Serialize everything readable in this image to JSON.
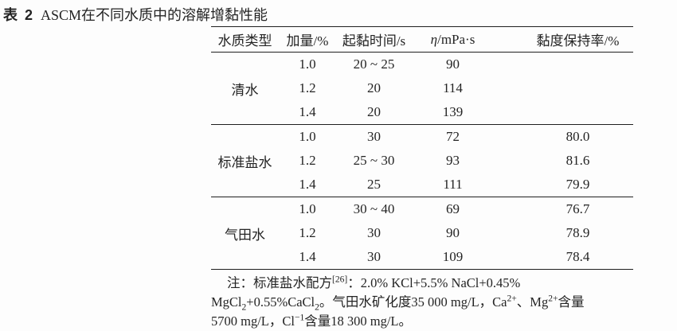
{
  "page": {
    "background": "#fdfdfd",
    "text_color": "#242424",
    "rule_color": "#1f1f1f"
  },
  "caption": {
    "label": "表 2",
    "title": "ASCM在不同水质中的溶解增黏性能"
  },
  "table": {
    "columns": [
      "水质类型",
      "加量/%",
      "起黏时间/s",
      "η/mPa·s",
      "黏度保持率/%"
    ],
    "groups": [
      {
        "water_type": "清水",
        "rows": [
          {
            "dosage": "1.0",
            "onset_time_s": "20 ~ 25",
            "viscosity_mpas": "90",
            "retention_pct": ""
          },
          {
            "dosage": "1.2",
            "onset_time_s": "20",
            "viscosity_mpas": "114",
            "retention_pct": ""
          },
          {
            "dosage": "1.4",
            "onset_time_s": "20",
            "viscosity_mpas": "139",
            "retention_pct": ""
          }
        ]
      },
      {
        "water_type": "标准盐水",
        "rows": [
          {
            "dosage": "1.0",
            "onset_time_s": "30",
            "viscosity_mpas": "72",
            "retention_pct": "80.0"
          },
          {
            "dosage": "1.2",
            "onset_time_s": "25 ~ 30",
            "viscosity_mpas": "93",
            "retention_pct": "81.6"
          },
          {
            "dosage": "1.4",
            "onset_time_s": "25",
            "viscosity_mpas": "111",
            "retention_pct": "79.9"
          }
        ]
      },
      {
        "water_type": "气田水",
        "rows": [
          {
            "dosage": "1.0",
            "onset_time_s": "30 ~ 40",
            "viscosity_mpas": "69",
            "retention_pct": "76.7"
          },
          {
            "dosage": "1.2",
            "onset_time_s": "30",
            "viscosity_mpas": "90",
            "retention_pct": "78.9"
          },
          {
            "dosage": "1.4",
            "onset_time_s": "30",
            "viscosity_mpas": "109",
            "retention_pct": "78.4"
          }
        ]
      }
    ]
  },
  "note": {
    "lines": [
      [
        {
          "t": "注：标准盐水配方"
        },
        {
          "t": "[26]",
          "v": "sup"
        },
        {
          "t": "：2.0% KCl+5.5% NaCl+0.45%"
        }
      ],
      [
        {
          "t": "MgCl"
        },
        {
          "t": "2",
          "v": "sub"
        },
        {
          "t": "+0.55%CaCl"
        },
        {
          "t": "2",
          "v": "sub"
        },
        {
          "t": "。气田水矿化度35 000 mg/L，Ca"
        },
        {
          "t": "2+",
          "v": "sup"
        },
        {
          "t": "、Mg"
        },
        {
          "t": "2+",
          "v": "sup"
        },
        {
          "t": "含量"
        }
      ],
      [
        {
          "t": "5700 mg/L，Cl"
        },
        {
          "t": "−1",
          "v": "sup"
        },
        {
          "t": "含量18 300 mg/L。"
        }
      ]
    ]
  }
}
